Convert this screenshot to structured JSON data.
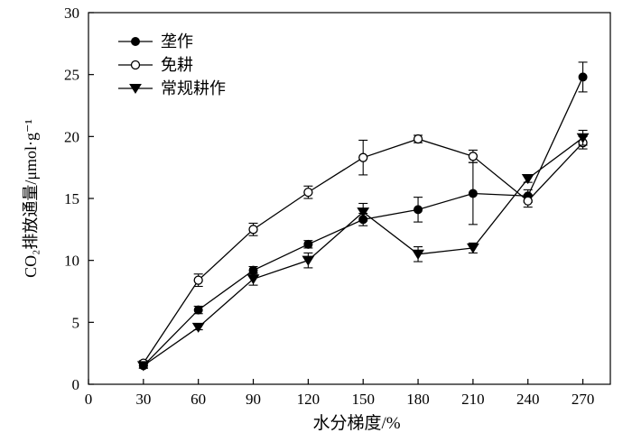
{
  "chart_data": {
    "type": "line",
    "xlabel": "水分梯度/%",
    "ylabel": "CO₂排放通量/μmol·g⁻¹",
    "xlim": [
      0,
      285
    ],
    "ylim": [
      0,
      30
    ],
    "xticks": [
      0,
      30,
      60,
      90,
      120,
      150,
      180,
      210,
      240,
      270
    ],
    "yticks": [
      0,
      5,
      10,
      15,
      20,
      25,
      30
    ],
    "grid": false,
    "legend_position": "top-left",
    "x": [
      30,
      60,
      90,
      120,
      150,
      180,
      210,
      240,
      270
    ],
    "series": [
      {
        "name": "垄作",
        "marker": "filled-circle",
        "values": [
          1.5,
          6.0,
          9.2,
          11.3,
          13.3,
          14.1,
          15.4,
          15.2,
          24.8
        ],
        "errors": [
          0.2,
          0.3,
          0.3,
          0.3,
          0.5,
          1.0,
          2.5,
          0.5,
          1.2
        ]
      },
      {
        "name": "免耕",
        "marker": "open-circle",
        "values": [
          1.7,
          8.4,
          12.5,
          15.5,
          18.3,
          19.8,
          18.4,
          14.8,
          19.5
        ],
        "errors": [
          0.2,
          0.5,
          0.5,
          0.5,
          1.4,
          0.3,
          0.5,
          0.5,
          0.5
        ]
      },
      {
        "name": "常规耕作",
        "marker": "filled-triangle-down",
        "values": [
          1.5,
          4.6,
          8.5,
          10.0,
          13.9,
          10.5,
          11.0,
          16.6,
          19.9
        ],
        "errors": [
          0.2,
          0.2,
          0.5,
          0.6,
          0.7,
          0.6,
          0.4,
          0.3,
          0.6
        ]
      }
    ]
  }
}
